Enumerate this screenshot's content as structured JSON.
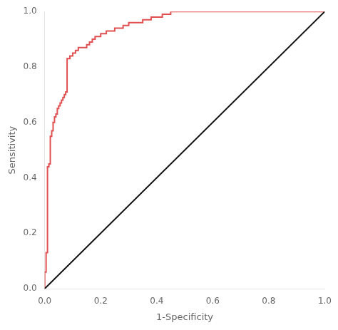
{
  "chart_data": {
    "type": "line",
    "xlabel": "1-Specificity",
    "ylabel": "Sensitivity",
    "xlim": [
      0.0,
      1.0
    ],
    "ylim": [
      0.0,
      1.0
    ],
    "xticks": [
      {
        "value": 0,
        "label": "0.0"
      },
      0.2,
      0.4,
      0.6,
      0.8,
      {
        "value": 1,
        "label": "1.0"
      }
    ],
    "yticks": [
      {
        "value": 0,
        "label": "0.0"
      },
      0.2,
      0.4,
      0.6,
      0.8,
      {
        "value": 1,
        "label": "1.0"
      }
    ],
    "grid": false,
    "series": [
      {
        "color": "#111111",
        "x": [
          0,
          1
        ],
        "values": [
          0,
          1
        ]
      },
      {
        "color": "#E05050",
        "x": [
          0.0,
          0.0,
          0.005,
          0.005,
          0.01,
          0.01,
          0.015,
          0.015,
          0.02,
          0.02,
          0.025,
          0.025,
          0.03,
          0.03,
          0.035,
          0.035,
          0.04,
          0.04,
          0.045,
          0.045,
          0.05,
          0.05,
          0.055,
          0.055,
          0.06,
          0.06,
          0.065,
          0.065,
          0.07,
          0.07,
          0.075,
          0.075,
          0.08,
          0.08,
          0.09,
          0.09,
          0.1,
          0.1,
          0.11,
          0.11,
          0.12,
          0.12,
          0.15,
          0.15,
          0.16,
          0.16,
          0.17,
          0.17,
          0.18,
          0.18,
          0.2,
          0.2,
          0.22,
          0.22,
          0.25,
          0.25,
          0.28,
          0.28,
          0.3,
          0.3,
          0.35,
          0.35,
          0.38,
          0.38,
          0.42,
          0.42,
          0.45,
          0.45,
          0.47,
          0.47,
          0.5,
          0.5,
          0.55,
          0.55,
          0.6,
          0.6,
          0.65,
          0.65,
          0.7,
          0.7,
          0.75,
          0.75,
          1.0
        ],
        "values": [
          0.0,
          0.06,
          0.06,
          0.13,
          0.13,
          0.44,
          0.44,
          0.45,
          0.45,
          0.55,
          0.55,
          0.57,
          0.57,
          0.6,
          0.6,
          0.62,
          0.62,
          0.63,
          0.63,
          0.65,
          0.65,
          0.66,
          0.66,
          0.67,
          0.67,
          0.68,
          0.68,
          0.69,
          0.69,
          0.7,
          0.7,
          0.71,
          0.71,
          0.83,
          0.83,
          0.84,
          0.84,
          0.85,
          0.85,
          0.86,
          0.86,
          0.87,
          0.87,
          0.88,
          0.88,
          0.89,
          0.89,
          0.9,
          0.9,
          0.91,
          0.91,
          0.92,
          0.92,
          0.93,
          0.93,
          0.94,
          0.94,
          0.95,
          0.95,
          0.96,
          0.96,
          0.97,
          0.97,
          0.98,
          0.98,
          0.99,
          0.99,
          1.0,
          1.0,
          1.0,
          1.0,
          1.0,
          1.0,
          1.0,
          1.0,
          1.0,
          1.0,
          1.0,
          1.0,
          1.0,
          1.0,
          1.0,
          1.0
        ]
      }
    ]
  }
}
